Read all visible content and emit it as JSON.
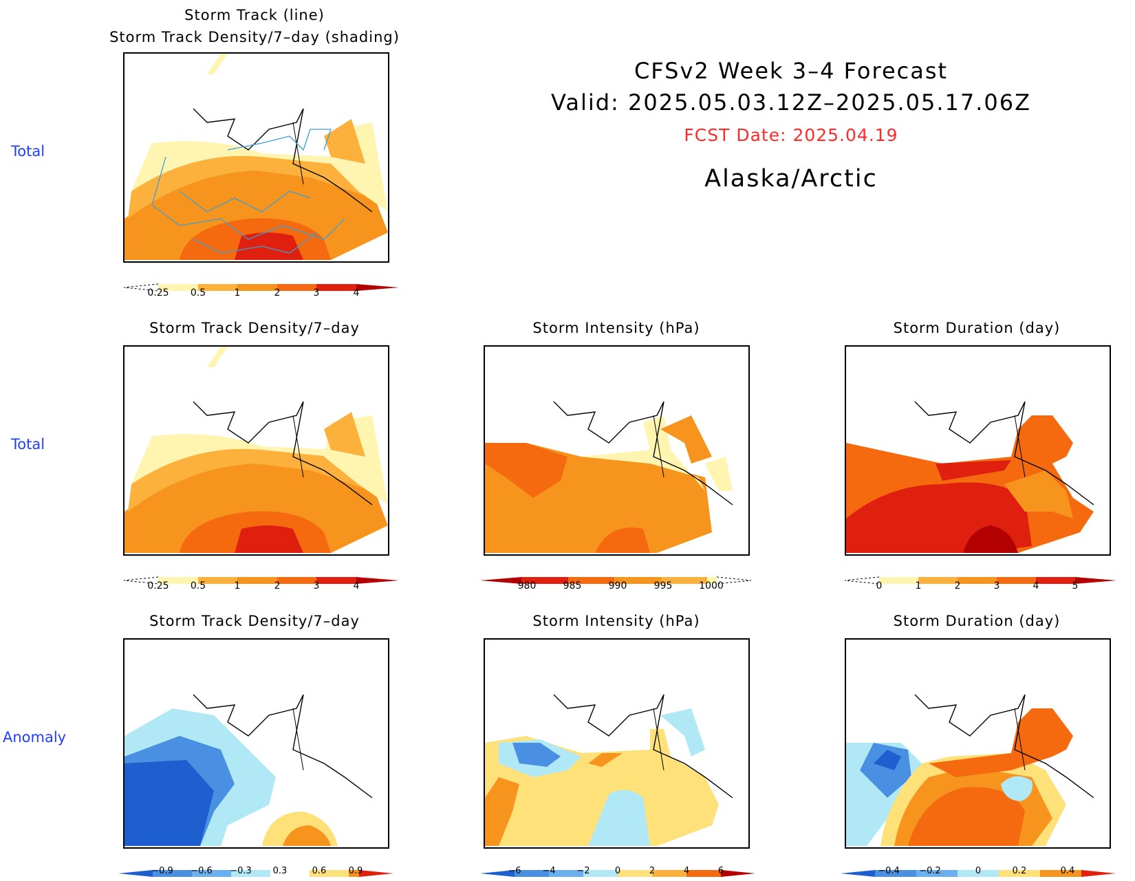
{
  "header": {
    "line1": "CFSv2  Week  3–4  Forecast",
    "line2": "Valid:  2025.05.03.12Z–2025.05.17.06Z",
    "fcst": "FCST Date: 2025.04.19",
    "region": "Alaska/Arctic",
    "fcst_color": "#ff2b2b"
  },
  "row_labels": {
    "row1": "Total",
    "row2": "Total",
    "row3": "Anomaly"
  },
  "panels": {
    "p1_title_line1": "Storm  Track  (line)",
    "p1_title_line2": "Storm  Track  Density/7–day  (shading)",
    "p2_title": "Storm  Track  Density/7–day",
    "p3_title": "Storm  Intensity  (hPa)",
    "p4_title": "Storm  Duration  (day)",
    "p5_title": "Storm  Track  Density/7–day",
    "p6_title": "Storm  Intensity  (hPa)",
    "p7_title": "Storm  Duration  (day)"
  },
  "colorbars": {
    "density": [
      "0.25",
      "0.5",
      "1",
      "2",
      "3",
      "4"
    ],
    "intensity": [
      "980",
      "985",
      "990",
      "995",
      "1000"
    ],
    "duration": [
      "0",
      "1",
      "2",
      "3",
      "4",
      "5"
    ],
    "density_anom": [
      "−0.9",
      "−0.6",
      "−0.3",
      "0.3",
      "0.6",
      "0.9"
    ],
    "intensity_anom": [
      "−6",
      "−4",
      "−2",
      "0",
      "2",
      "4",
      "6"
    ],
    "duration_anom": [
      "−0.4",
      "−0.2",
      "0",
      "0.2",
      "0.4"
    ]
  },
  "colors": {
    "yellow_light": "#fff5b0",
    "yellow": "#ffe17a",
    "orange_light": "#fbb13c",
    "orange": "#f7941d",
    "orange_dark": "#f56a0f",
    "red": "#e0200f",
    "red_dark": "#b30000",
    "blue_light": "#b0e8f5",
    "blue": "#6ab0ee",
    "blue_mid": "#4a90e2",
    "blue_dark": "#1e5fd0",
    "track_line": "#3aa0d8"
  }
}
